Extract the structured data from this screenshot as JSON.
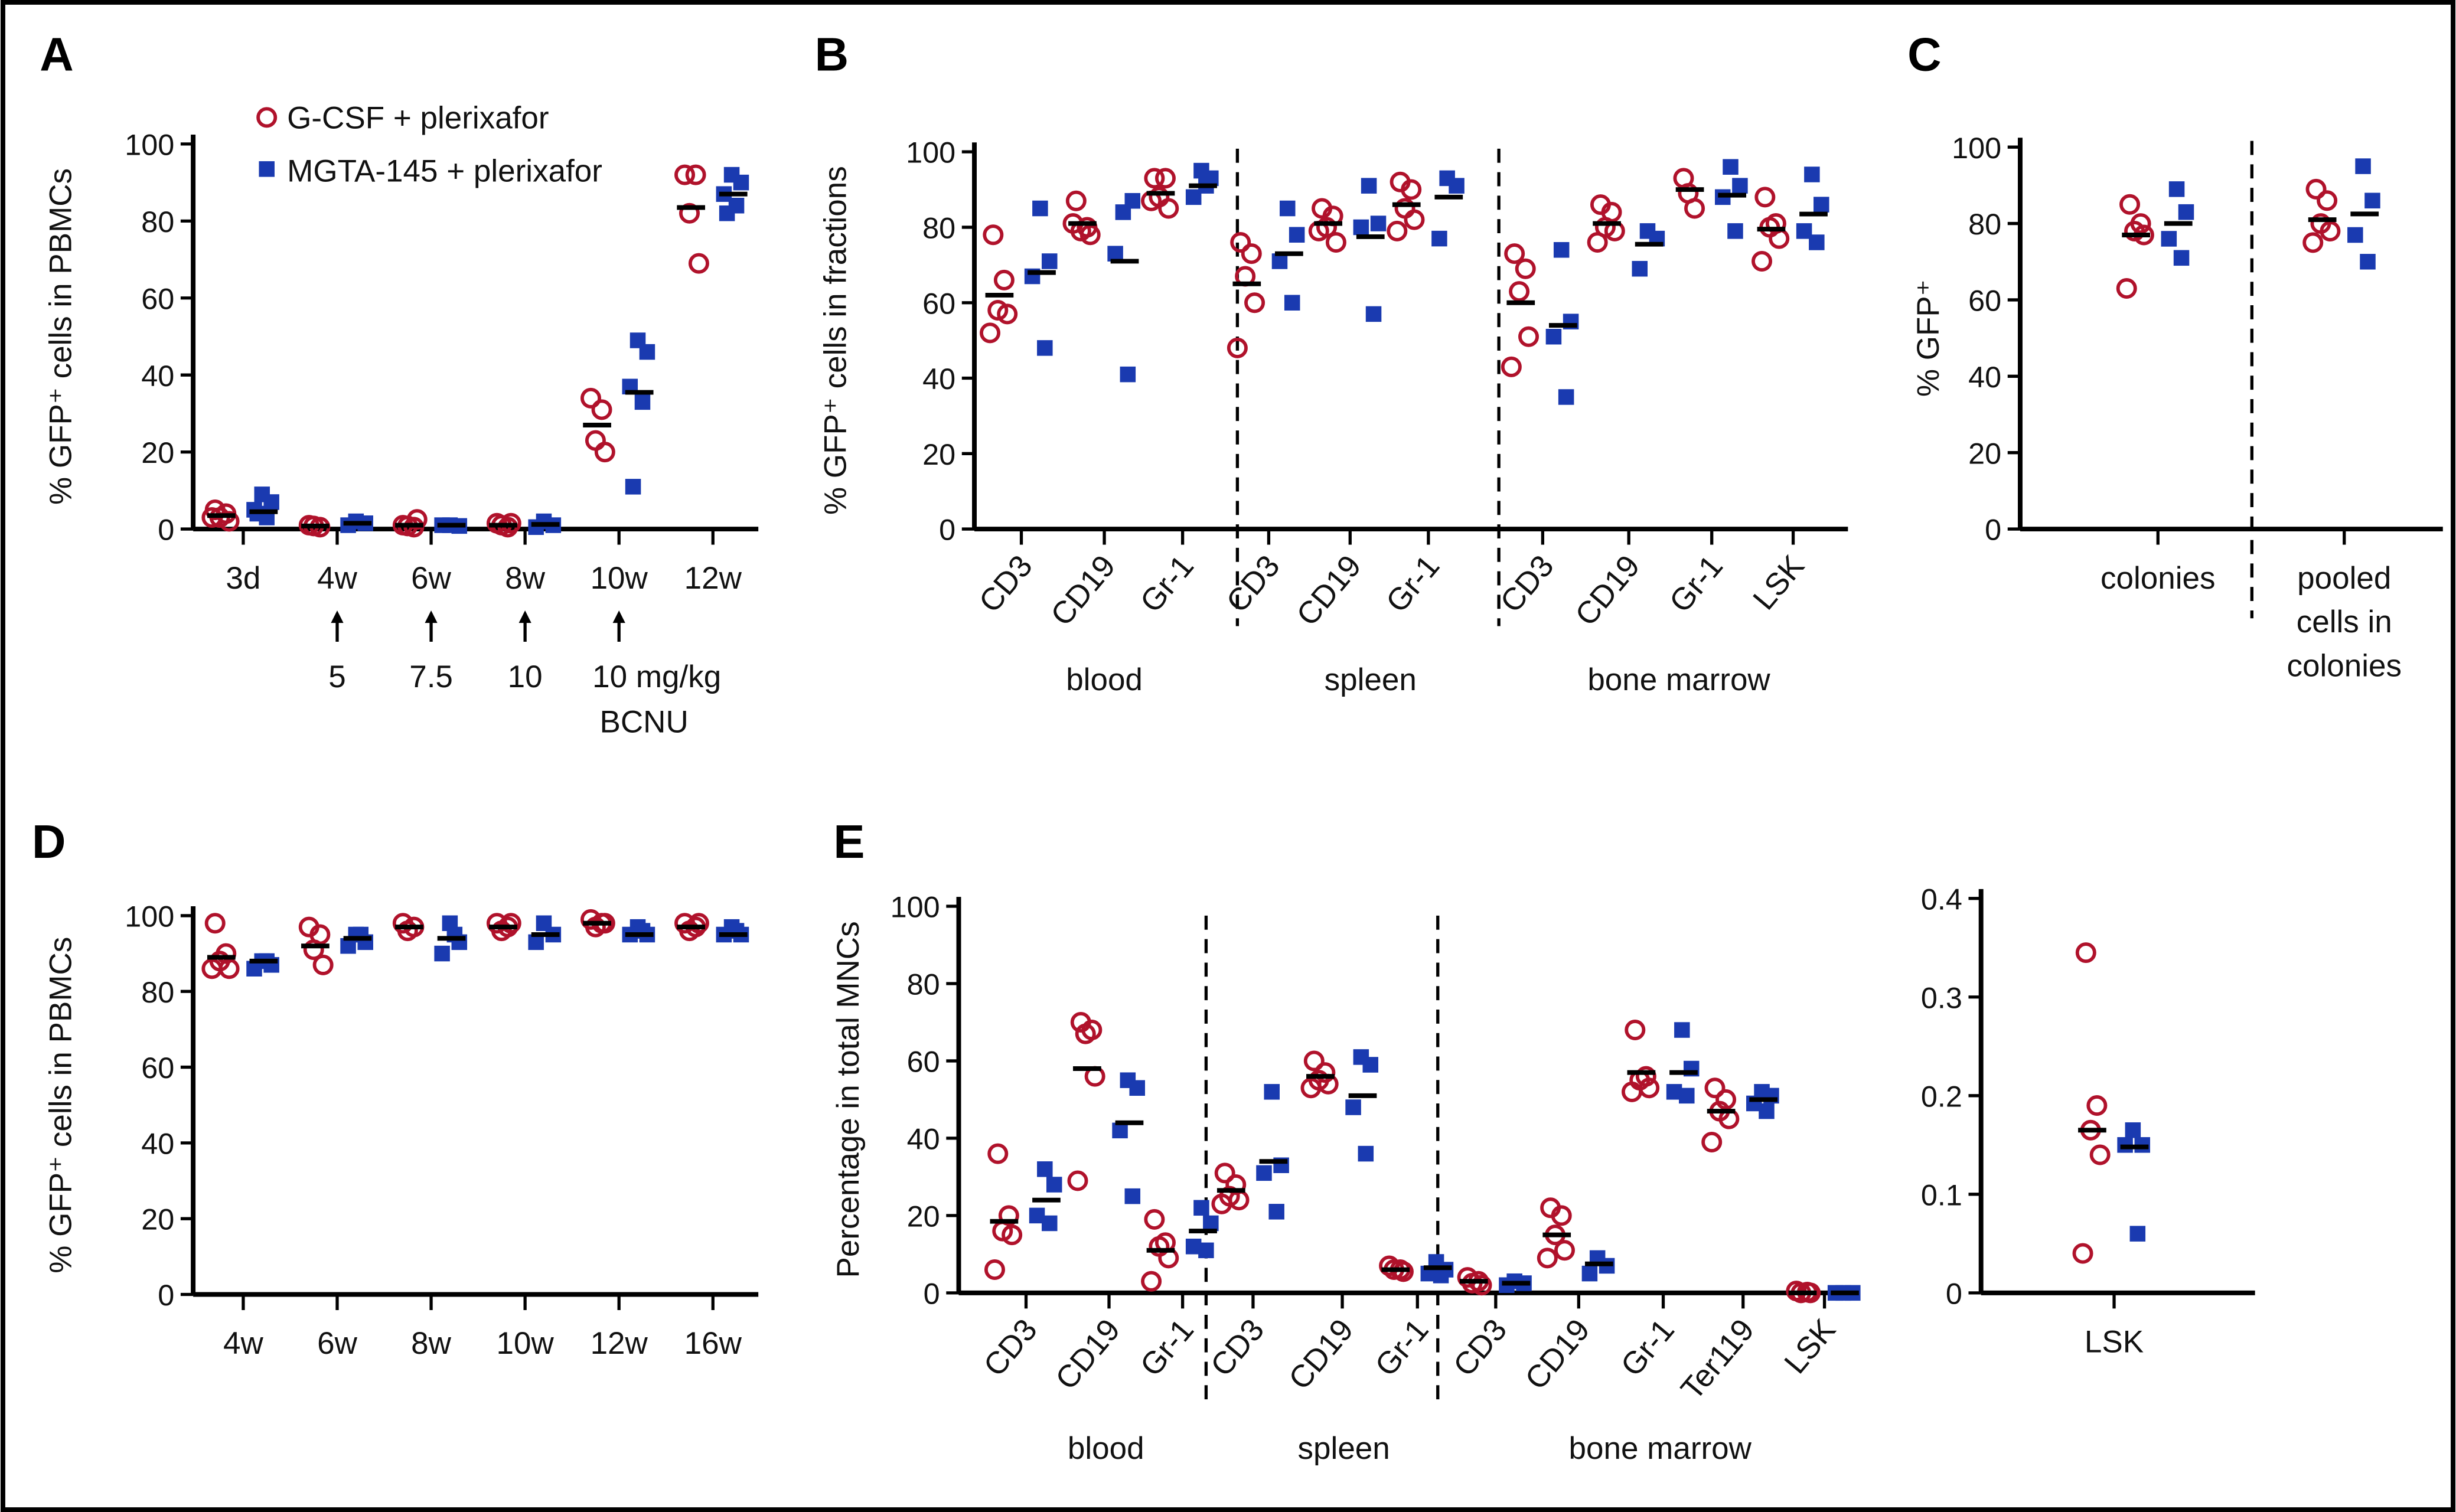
{
  "colors": {
    "g_csf": "#b0122b",
    "mgta": "#1a3ab0",
    "median": "#000000"
  },
  "legend": [
    {
      "label": "G-CSF + plerixafor",
      "marker": "open-circle",
      "color": "#b0122b"
    },
    {
      "label": "MGTA-145 + plerixafor",
      "marker": "filled-square",
      "color": "#1a3ab0"
    }
  ],
  "chart_data": [
    {
      "panel": "A",
      "type": "scatter",
      "ylabel": "% GFP⁺ cells in PBMCs",
      "ylim": [
        0,
        100
      ],
      "yticks": [
        0,
        20,
        40,
        60,
        80,
        100
      ],
      "groups": [
        {
          "label": "3d",
          "red": [
            5,
            4,
            3,
            2,
            3
          ],
          "red_median": 3.5,
          "blue": [
            9,
            7,
            5,
            3,
            4
          ],
          "blue_median": 4.5
        },
        {
          "label": "4w",
          "red": [
            1,
            0.5,
            0.8
          ],
          "red_median": 0.8,
          "blue": [
            2,
            1.5,
            1
          ],
          "blue_median": 1.5
        },
        {
          "label": "6w",
          "red": [
            1,
            0.5,
            0.8,
            2.5
          ],
          "red_median": 1,
          "blue": [
            1,
            0.8,
            1
          ],
          "blue_median": 1
        },
        {
          "label": "8w",
          "red": [
            1.5,
            0.5,
            1,
            1.5
          ],
          "red_median": 1,
          "blue": [
            2,
            1,
            0.5
          ],
          "blue_median": 1.2
        },
        {
          "label": "10w",
          "red": [
            34,
            31,
            23,
            20
          ],
          "red_median": 27,
          "blue": [
            49,
            46,
            37,
            33,
            11
          ],
          "blue_median": 35.5
        },
        {
          "label": "12w",
          "red": [
            92,
            92,
            82,
            69
          ],
          "red_median": 83.5,
          "blue": [
            92,
            90,
            87,
            84,
            82
          ],
          "blue_median": 87
        }
      ],
      "doses": [
        "5",
        "7.5",
        "10",
        "10 mg/kg"
      ],
      "dose_drug": "BCNU"
    },
    {
      "panel": "B",
      "type": "scatter",
      "ylabel": "% GFP⁺ cells in fractions",
      "ylim": [
        0,
        100
      ],
      "yticks": [
        0,
        20,
        40,
        60,
        80,
        100
      ],
      "sections": [
        "blood",
        "spleen",
        "bone marrow"
      ],
      "groups": [
        {
          "label": "CD3",
          "red": [
            78,
            66,
            58,
            57,
            52
          ],
          "red_median": 62,
          "blue": [
            85,
            71,
            67,
            48
          ],
          "blue_median": 68
        },
        {
          "label": "CD19",
          "red": [
            87,
            80,
            79,
            78,
            81
          ],
          "red_median": 81,
          "blue": [
            84,
            87,
            73,
            41
          ],
          "blue_median": 71
        },
        {
          "label": "Gr-1",
          "red": [
            93,
            93,
            88,
            85,
            87
          ],
          "red_median": 89,
          "blue": [
            95,
            93,
            88,
            91
          ],
          "blue_median": 91
        },
        {
          "label": "CD3",
          "red": [
            76,
            73,
            67,
            60,
            48
          ],
          "red_median": 65,
          "blue": [
            85,
            78,
            71,
            60
          ],
          "blue_median": 73
        },
        {
          "label": "CD19",
          "red": [
            85,
            83,
            80,
            76,
            79
          ],
          "red_median": 81,
          "blue": [
            91,
            81,
            80,
            57
          ],
          "blue_median": 77.5
        },
        {
          "label": "Gr-1",
          "red": [
            92,
            90,
            85,
            82,
            79
          ],
          "red_median": 86,
          "blue": [
            93,
            91,
            77
          ],
          "blue_median": 88
        },
        {
          "label": "CD3",
          "red": [
            73,
            69,
            63,
            51,
            43
          ],
          "red_median": 60,
          "blue": [
            74,
            55,
            51,
            35
          ],
          "blue_median": 54
        },
        {
          "label": "CD19",
          "red": [
            86,
            84,
            80,
            79,
            76
          ],
          "red_median": 81,
          "blue": [
            79,
            77,
            69
          ],
          "blue_median": 75.5
        },
        {
          "label": "Gr-1",
          "red": [
            93,
            85,
            89
          ],
          "red_median": 90,
          "blue": [
            96,
            91,
            88,
            79
          ],
          "blue_median": 88.5
        },
        {
          "label": "LSK",
          "red": [
            88,
            81,
            80,
            77,
            71
          ],
          "red_median": 79.5,
          "blue": [
            94,
            86,
            79,
            76
          ],
          "blue_median": 83.5
        }
      ]
    },
    {
      "panel": "C",
      "type": "scatter",
      "ylabel": "% GFP⁺",
      "ylim": [
        0,
        100
      ],
      "yticks": [
        0,
        20,
        40,
        60,
        80,
        100
      ],
      "groups": [
        {
          "label": "colonies",
          "red": [
            85,
            80,
            78,
            77,
            63
          ],
          "red_median": 77,
          "blue": [
            89,
            83,
            76,
            71
          ],
          "blue_median": 80
        },
        {
          "label": "pooled cells in colonies",
          "label_lines": [
            "pooled",
            "cells in",
            "colonies"
          ],
          "red": [
            89,
            86,
            80,
            78,
            75
          ],
          "red_median": 81,
          "blue": [
            95,
            86,
            77,
            70
          ],
          "blue_median": 82.5
        }
      ]
    },
    {
      "panel": "D",
      "type": "scatter",
      "ylabel": "% GFP⁺ cells in PBMCs",
      "ylim": [
        0,
        100
      ],
      "yticks": [
        0,
        20,
        40,
        60,
        80,
        100
      ],
      "groups": [
        {
          "label": "4w",
          "red": [
            98,
            90,
            88,
            86,
            86
          ],
          "red_median": 89,
          "blue": [
            88,
            87,
            86,
            88
          ],
          "blue_median": 88
        },
        {
          "label": "6w",
          "red": [
            97,
            95,
            91,
            87
          ],
          "red_median": 92,
          "blue": [
            95,
            93,
            92,
            95
          ],
          "blue_median": 94
        },
        {
          "label": "8w",
          "red": [
            98,
            97,
            96
          ],
          "red_median": 97,
          "blue": [
            98,
            93,
            90,
            95
          ],
          "blue_median": 94
        },
        {
          "label": "10w",
          "red": [
            98,
            97,
            96,
            98
          ],
          "red_median": 97,
          "blue": [
            98,
            95,
            93
          ],
          "blue_median": 95
        },
        {
          "label": "12w",
          "red": [
            99,
            98,
            97,
            98
          ],
          "red_median": 98,
          "blue": [
            97,
            95,
            95,
            96
          ],
          "blue_median": 95
        },
        {
          "label": "16w",
          "red": [
            98,
            97,
            96,
            98
          ],
          "red_median": 97,
          "blue": [
            97,
            95,
            95,
            96
          ],
          "blue_median": 95
        }
      ]
    },
    {
      "panel": "E",
      "type": "scatter",
      "ylabel": "Percentage in total MNCs",
      "ylim": [
        0,
        100
      ],
      "yticks": [
        0,
        20,
        40,
        60,
        80,
        100
      ],
      "sections": [
        "blood",
        "spleen",
        "bone marrow"
      ],
      "groups": [
        {
          "label": "CD3",
          "red": [
            36,
            20,
            16,
            15,
            6
          ],
          "red_median": 18.5,
          "blue": [
            32,
            28,
            20,
            18
          ],
          "blue_median": 24
        },
        {
          "label": "CD19",
          "red": [
            70,
            68,
            67,
            56,
            29
          ],
          "red_median": 58,
          "blue": [
            55,
            53,
            42,
            25
          ],
          "blue_median": 44
        },
        {
          "label": "Gr-1",
          "red": [
            19,
            13,
            12,
            9,
            3
          ],
          "red_median": 11,
          "blue": [
            22,
            18,
            12,
            11
          ],
          "blue_median": 16
        },
        {
          "label": "CD3",
          "red": [
            31,
            28,
            25,
            24,
            23
          ],
          "red_median": 26.5,
          "blue": [
            52,
            33,
            31,
            21
          ],
          "blue_median": 34
        },
        {
          "label": "CD19",
          "red": [
            60,
            57,
            55,
            54,
            53
          ],
          "red_median": 56,
          "blue": [
            61,
            59,
            48,
            36
          ],
          "blue_median": 51
        },
        {
          "label": "Gr-1",
          "red": [
            7,
            6,
            6,
            5.5
          ],
          "red_median": 6,
          "blue": [
            8,
            6,
            5,
            4.5
          ],
          "blue_median": 6.5
        },
        {
          "label": "CD3",
          "red": [
            4,
            3,
            2.5,
            2
          ],
          "red_median": 3,
          "blue": [
            3,
            2.5,
            2
          ],
          "blue_median": 2.5
        },
        {
          "label": "CD19",
          "red": [
            22,
            20,
            15,
            11,
            9
          ],
          "red_median": 15,
          "blue": [
            9,
            7,
            5
          ],
          "blue_median": 7.5
        },
        {
          "label": "Gr-1",
          "red": [
            68,
            56,
            55,
            53,
            52
          ],
          "red_median": 57,
          "blue": [
            68,
            58,
            52,
            51
          ],
          "blue_median": 57
        },
        {
          "label": "Ter119",
          "red": [
            53,
            50,
            47,
            45,
            39
          ],
          "red_median": 47,
          "blue": [
            52,
            51,
            49,
            47
          ],
          "blue_median": 50
        },
        {
          "label": "LSK",
          "red": [
            0.5,
            0.2,
            0,
            0
          ],
          "red_median": 0,
          "blue": [
            0,
            0,
            0
          ],
          "blue_median": 0
        }
      ]
    },
    {
      "panel": "E-inset",
      "type": "scatter",
      "ylabel": "",
      "ylim": [
        0,
        0.4
      ],
      "yticks": [
        0,
        0.1,
        0.2,
        0.3,
        0.4
      ],
      "groups": [
        {
          "label": "LSK",
          "red": [
            0.345,
            0.19,
            0.165,
            0.14,
            0.04
          ],
          "red_median": 0.165,
          "blue": [
            0.165,
            0.15,
            0.15,
            0.06
          ],
          "blue_median": 0.148
        }
      ]
    }
  ]
}
